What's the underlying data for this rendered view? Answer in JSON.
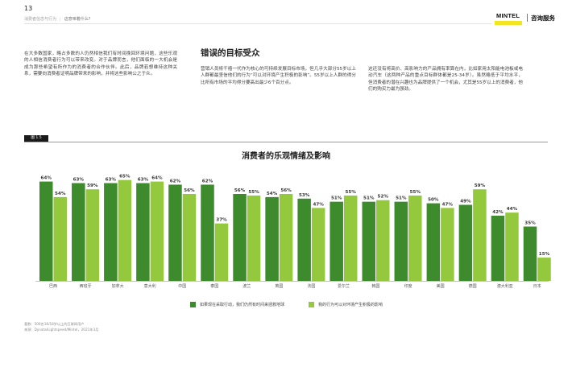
{
  "header": {
    "page_number": "13",
    "breadcrumb_section": "消费者信念与行为",
    "breadcrumb_current": "这意味着什么？",
    "brand_name": "MINTEL",
    "brand_service": "咨询服务",
    "brand_color": "#f3e51f"
  },
  "intro_text": "在大多数国家，略占多数的人仍然相信我们有时间挽回环境问题，这些乐观的人相信消费者行为可以带来改变。对于品牌而言，他们面临的一大机会是成为那些希望有所作为的消费者的合作伙伴。此后，品牌若想维持这种关系，需要向消费者证明品牌带来的影响，并将这些影响公之于众。",
  "section": {
    "title": "错误的目标受众",
    "col2": "营销人员将千禧一代作为核心的可持续发展目标市场，但几乎大部分55岁以上人群都最坚信他们的行为“可以对环境产生积极的影响”。55岁以上人群的得分比所有市场的平均得分要高出最少6个百分点。",
    "col3": "这还没有将高价、高影响力的产品拥有率算在内，比如家用太阳能电池板或电动汽车（这两种产品的重点目标群体都是25-34岁）。虽然略低于平均水平，但消费者的潜在兴趣也为品牌提供了一个机会，尤其是55岁以上的消费者，他们的购买力最为强劲。"
  },
  "figure": {
    "label": "图 1.5",
    "title": "消费者的乐观情绪及影响",
    "source_line1": "基数：500名16/18岁以上的互联网用户",
    "source_line2": "来源：Dynata/Lightspeed/Mintel，2021年3月"
  },
  "chart_data": {
    "type": "bar",
    "title": "消费者的乐观情绪及影响",
    "categories": [
      "巴西",
      "西班牙",
      "加拿大",
      "意大利",
      "中国",
      "泰国",
      "波兰",
      "英国",
      "法国",
      "爱尔兰",
      "韩国",
      "印度",
      "美国",
      "德国",
      "澳大利亚",
      "日本"
    ],
    "series": [
      {
        "name": "如果现在采取行动，我们仍然有时间来拯救地球",
        "color": "#3e8b2e",
        "values": [
          64,
          63,
          63,
          63,
          62,
          62,
          56,
          54,
          53,
          51,
          51,
          51,
          50,
          49,
          42,
          35
        ]
      },
      {
        "name": "我的行为可以对环境产生积极的影响",
        "color": "#95c93d",
        "values": [
          54,
          59,
          65,
          64,
          56,
          37,
          55,
          56,
          47,
          55,
          52,
          55,
          47,
          59,
          44,
          15
        ]
      }
    ],
    "value_suffix": "%",
    "ylim": [
      0,
      70
    ],
    "grid": false,
    "legend_position": "bottom"
  }
}
